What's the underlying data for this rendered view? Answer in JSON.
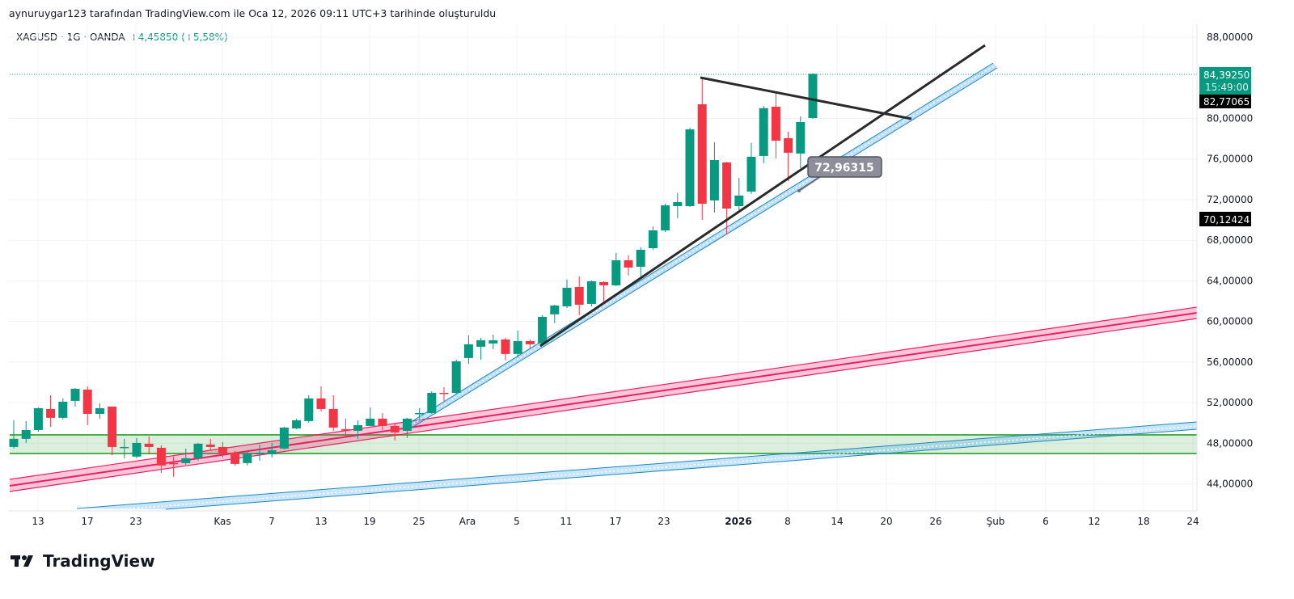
{
  "caption": "aynuruygar123 tarafından TradingView.com ile Oca 12, 2026 09:11 UTC+3 tarihinde oluşturuldu",
  "legend": {
    "symbol": "XAGUSD · 1G · OANDA",
    "change": "+4,45850 (+5,58%)"
  },
  "colors": {
    "up": "#089981",
    "down": "#f23645",
    "zone": "#4caf50",
    "channel_pink": "#e91e63",
    "channel_blue": "#2196f3"
  },
  "price_axis": {
    "ticks": [
      {
        "value": 88,
        "label": "88,00000"
      },
      {
        "value": 80,
        "label": "80,00000"
      },
      {
        "value": 76,
        "label": "76,00000"
      },
      {
        "value": 72,
        "label": "72,00000"
      },
      {
        "value": 68,
        "label": "68,00000"
      },
      {
        "value": 64,
        "label": "64,00000"
      },
      {
        "value": 60,
        "label": "60,00000"
      },
      {
        "value": 56,
        "label": "56,00000"
      },
      {
        "value": 52,
        "label": "52,00000"
      },
      {
        "value": 48,
        "label": "48,00000"
      },
      {
        "value": 44,
        "label": "44,00000"
      }
    ],
    "last_price": {
      "value": 84.3925,
      "label": "84,39250",
      "countdown": "15:49:00"
    },
    "marker_1": {
      "value": 82.77065,
      "label": "82,77065"
    },
    "marker_2": {
      "value": 70.12424,
      "label": "70,12424"
    }
  },
  "time_axis": [
    "13",
    "17",
    "23",
    "Kas",
    "7",
    "13",
    "19",
    "25",
    "Ara",
    "5",
    "11",
    "17",
    "23",
    "2026",
    "8",
    "14",
    "20",
    "26",
    "Şub",
    "6",
    "12",
    "18",
    "24"
  ],
  "annotation": {
    "label": "72,96315",
    "value": 72.96315
  },
  "chart_data": {
    "type": "candlestick",
    "symbol": "XAGUSD",
    "ylim": [
      42,
      89
    ],
    "ohlc": [
      [
        47.64,
        50.27,
        47.48,
        48.44
      ],
      [
        48.44,
        50.19,
        48.04,
        49.31
      ],
      [
        49.31,
        51.54,
        49.15,
        51.46
      ],
      [
        51.38,
        52.74,
        49.63,
        50.51
      ],
      [
        50.51,
        52.42,
        50.35,
        52.1
      ],
      [
        52.18,
        53.45,
        51.62,
        53.37
      ],
      [
        53.29,
        53.61,
        49.79,
        50.9
      ],
      [
        50.9,
        51.94,
        50.43,
        51.46
      ],
      [
        51.62,
        51.62,
        46.84,
        47.64
      ],
      [
        47.56,
        48.44,
        46.53,
        47.64
      ],
      [
        46.69,
        48.52,
        46.53,
        48.04
      ],
      [
        47.96,
        48.68,
        46.92,
        47.64
      ],
      [
        47.56,
        47.8,
        45.09,
        45.81
      ],
      [
        46.05,
        46.69,
        44.7,
        45.97
      ],
      [
        46.05,
        47.48,
        45.89,
        46.53
      ],
      [
        46.53,
        48.04,
        46.29,
        47.96
      ],
      [
        47.88,
        48.44,
        47.32,
        47.64
      ],
      [
        47.64,
        48.12,
        46.61,
        47.0
      ],
      [
        47.08,
        47.24,
        45.81,
        45.97
      ],
      [
        46.05,
        47.24,
        45.81,
        47.0
      ],
      [
        46.92,
        47.88,
        46.29,
        47.08
      ],
      [
        46.92,
        48.04,
        46.61,
        47.32
      ],
      [
        47.48,
        49.63,
        47.4,
        49.55
      ],
      [
        49.47,
        50.43,
        49.39,
        50.27
      ],
      [
        50.19,
        52.74,
        50.03,
        52.42
      ],
      [
        52.42,
        53.61,
        51.14,
        51.38
      ],
      [
        51.38,
        52.74,
        49.23,
        49.55
      ],
      [
        49.39,
        50.43,
        48.68,
        49.31
      ],
      [
        49.23,
        50.27,
        48.44,
        49.79
      ],
      [
        49.71,
        51.54,
        49.71,
        50.43
      ],
      [
        50.43,
        50.98,
        49.31,
        49.71
      ],
      [
        49.71,
        49.95,
        48.28,
        49.07
      ],
      [
        49.23,
        50.51,
        48.52,
        50.43
      ],
      [
        50.9,
        51.46,
        50.43,
        50.98
      ],
      [
        50.98,
        53.13,
        50.9,
        52.97
      ],
      [
        52.97,
        53.53,
        52.18,
        52.89
      ],
      [
        52.97,
        56.24,
        52.81,
        56.08
      ],
      [
        56.4,
        58.63,
        55.84,
        57.75
      ],
      [
        57.51,
        58.39,
        56.24,
        58.15
      ],
      [
        57.83,
        58.71,
        57.27,
        58.15
      ],
      [
        58.23,
        58.39,
        56.16,
        56.8
      ],
      [
        56.8,
        59.1,
        56.48,
        58.07
      ],
      [
        58.07,
        58.23,
        57.27,
        57.75
      ],
      [
        57.83,
        60.62,
        57.75,
        60.46
      ],
      [
        60.7,
        61.65,
        59.82,
        61.57
      ],
      [
        61.49,
        64.12,
        61.33,
        63.32
      ],
      [
        63.4,
        64.44,
        60.62,
        61.65
      ],
      [
        61.73,
        64.04,
        61.49,
        63.96
      ],
      [
        63.88,
        63.96,
        61.97,
        63.56
      ],
      [
        63.56,
        66.75,
        63.48,
        66.03
      ],
      [
        66.03,
        66.51,
        64.52,
        65.31
      ],
      [
        65.39,
        67.3,
        64.44,
        67.06
      ],
      [
        67.22,
        69.37,
        67.06,
        68.97
      ],
      [
        68.97,
        71.6,
        68.81,
        71.44
      ],
      [
        71.36,
        72.64,
        70.17,
        71.76
      ],
      [
        71.36,
        79.08,
        71.28,
        78.92
      ],
      [
        81.39,
        83.94,
        70.01,
        71.6
      ],
      [
        71.92,
        77.65,
        70.73,
        75.9
      ],
      [
        75.66,
        75.74,
        68.57,
        71.12
      ],
      [
        71.36,
        74.15,
        70.97,
        72.4
      ],
      [
        72.79,
        77.57,
        72.56,
        76.22
      ],
      [
        76.3,
        81.23,
        75.58,
        81.01
      ],
      [
        81.15,
        82.59,
        76.06,
        77.81
      ],
      [
        78.05,
        78.68,
        73.83,
        76.62
      ],
      [
        76.54,
        80.2,
        75.1,
        79.64
      ],
      [
        80.04,
        84.47,
        79.96,
        84.39
      ]
    ]
  },
  "brand": "TradingView"
}
